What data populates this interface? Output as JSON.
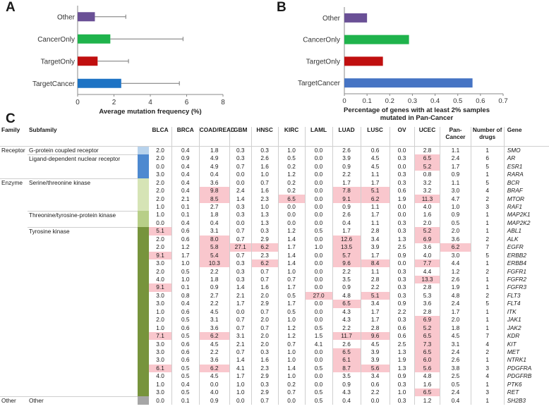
{
  "panels": {
    "a": "A",
    "b": "B",
    "c": "C"
  },
  "chart_data": [
    {
      "type": "bar",
      "orientation": "horizontal",
      "categories": [
        "Other",
        "CancerOnly",
        "TargetOnly",
        "TargetCancer"
      ],
      "values": [
        0.95,
        1.8,
        1.1,
        2.4
      ],
      "error": [
        1.7,
        4.0,
        1.7,
        3.2
      ],
      "colors": [
        "#6a5096",
        "#1fb34c",
        "#c00f0f",
        "#1d73c4"
      ],
      "xlabel": "Average mutation frequency (%)",
      "xlim": [
        0,
        8
      ],
      "xticks": [
        "0",
        "2",
        "4",
        "6",
        "8"
      ]
    },
    {
      "type": "bar",
      "orientation": "horizontal",
      "categories": [
        "Other",
        "CancerOnly",
        "TargetOnly",
        "TargetCancer"
      ],
      "values": [
        0.1,
        0.285,
        0.17,
        0.565
      ],
      "colors": [
        "#6a5096",
        "#1fb34c",
        "#c00f0f",
        "#4674c4"
      ],
      "xlabel": "Percentage of genes with at least 2% samples mutated in Pan-Cancer",
      "xlim": [
        0,
        0.7
      ],
      "xticks": [
        "0",
        "0.1",
        "0.2",
        "0.3",
        "0.4",
        "0.5",
        "0.6",
        "0.7"
      ]
    }
  ],
  "table": {
    "headers": {
      "family": "Family",
      "subfamily": "Subfamily",
      "cols": [
        "BLCA",
        "BRCA",
        "COAD/READ",
        "GBM",
        "HNSC",
        "KIRC",
        "LAML",
        "LUAD",
        "LUSC",
        "OV",
        "UCEC",
        "Pan-Cancer",
        "Number of drugs"
      ],
      "gene": "Gene"
    },
    "highlight_color": "#f9c7cd",
    "rows": [
      {
        "family": "Receptor",
        "subfamily": "G-protein coupled receptor",
        "bar": "#b7d2ec",
        "vals": [
          "2.0",
          "0.4",
          "1.8",
          "0.3",
          "0.3",
          "1.0",
          "0.0",
          "2.6",
          "0.6",
          "0.0",
          "2.8",
          "1.1",
          "1"
        ],
        "hl": [],
        "gene": "SMO"
      },
      {
        "family": "",
        "subfamily": "Ligand-dependent nuclear receptor",
        "bar": "#4d89d0",
        "vals": [
          "2.0",
          "0.9",
          "4.9",
          "0.3",
          "2.6",
          "0.5",
          "0.0",
          "3.9",
          "4.5",
          "0.3",
          "6.5",
          "2.4",
          "6"
        ],
        "hl": [
          10
        ],
        "gene": "AR"
      },
      {
        "family": "",
        "subfamily": "",
        "bar": "#4d89d0",
        "vals": [
          "0.0",
          "0.4",
          "4.9",
          "0.7",
          "1.6",
          "0.2",
          "0.0",
          "0.9",
          "4.5",
          "0.0",
          "5.2",
          "1.7",
          "5"
        ],
        "hl": [
          10
        ],
        "gene": "ESR1"
      },
      {
        "family": "",
        "subfamily": "",
        "bar": "#4d89d0",
        "vals": [
          "3.0",
          "0.4",
          "0.4",
          "0.0",
          "1.0",
          "1.2",
          "0.0",
          "2.2",
          "1.1",
          "0.3",
          "0.8",
          "0.9",
          "1"
        ],
        "hl": [],
        "gene": "RARA"
      },
      {
        "family": "Enzyme",
        "subfamily": "Serine/threonine kinase",
        "bar": "#d6e4b6",
        "vals": [
          "2.0",
          "0.4",
          "3.6",
          "0.0",
          "0.7",
          "0.2",
          "0.0",
          "1.7",
          "1.7",
          "0.3",
          "3.2",
          "1.1",
          "5"
        ],
        "hl": [],
        "gene": "BCR"
      },
      {
        "family": "",
        "subfamily": "",
        "bar": "#d6e4b6",
        "vals": [
          "2.0",
          "0.4",
          "9.8",
          "2.4",
          "1.6",
          "0.2",
          "0.0",
          "7.8",
          "5.1",
          "0.6",
          "3.2",
          "3.0",
          "4"
        ],
        "hl": [
          2,
          7,
          8
        ],
        "gene": "BRAF"
      },
      {
        "family": "",
        "subfamily": "",
        "bar": "#d6e4b6",
        "vals": [
          "2.0",
          "2.1",
          "8.5",
          "1.4",
          "2.3",
          "6.5",
          "0.0",
          "9.1",
          "6.2",
          "1.9",
          "11.3",
          "4.7",
          "2"
        ],
        "hl": [
          2,
          5,
          7,
          8,
          10
        ],
        "gene": "MTOR"
      },
      {
        "family": "",
        "subfamily": "",
        "bar": "#d6e4b6",
        "vals": [
          "1.0",
          "0.1",
          "2.7",
          "0.3",
          "1.0",
          "0.0",
          "0.0",
          "0.9",
          "1.1",
          "0.0",
          "4.0",
          "1.0",
          "3"
        ],
        "hl": [],
        "gene": "RAF1"
      },
      {
        "family": "",
        "subfamily": "Threonine/tyrosine-protein kinase",
        "bar": "#b8cf88",
        "vals": [
          "1.0",
          "0.1",
          "1.8",
          "0.3",
          "1.3",
          "0.0",
          "0.0",
          "2.6",
          "1.7",
          "0.0",
          "1.6",
          "0.9",
          "1"
        ],
        "hl": [],
        "gene": "MAP2K1"
      },
      {
        "family": "",
        "subfamily": "",
        "bar": "#b8cf88",
        "vals": [
          "0.0",
          "0.4",
          "0.4",
          "0.0",
          "1.3",
          "0.0",
          "0.0",
          "0.4",
          "1.1",
          "0.3",
          "2.0",
          "0.5",
          "1"
        ],
        "hl": [],
        "gene": "MAP2K2"
      },
      {
        "family": "",
        "subfamily": "Tyrosine kinase",
        "bar": "#77943c",
        "vals": [
          "5.1",
          "0.6",
          "3.1",
          "0.7",
          "0.3",
          "1.2",
          "0.5",
          "1.7",
          "2.8",
          "0.3",
          "5.2",
          "2.0",
          "1"
        ],
        "hl": [
          0,
          10
        ],
        "gene": "ABL1"
      },
      {
        "family": "",
        "subfamily": "",
        "bar": "#77943c",
        "vals": [
          "2.0",
          "0.6",
          "8.0",
          "0.7",
          "2.9",
          "1.4",
          "0.0",
          "12.6",
          "3.4",
          "1.3",
          "6.9",
          "3.6",
          "2"
        ],
        "hl": [
          2,
          7,
          10
        ],
        "gene": "ALK"
      },
      {
        "family": "",
        "subfamily": "",
        "bar": "#77943c",
        "vals": [
          "2.0",
          "1.2",
          "5.8",
          "27.1",
          "6.2",
          "1.7",
          "1.0",
          "13.5",
          "3.9",
          "2.5",
          "3.6",
          "6.2",
          "7"
        ],
        "hl": [
          2,
          3,
          4,
          7,
          11
        ],
        "gene": "EGFR"
      },
      {
        "family": "",
        "subfamily": "",
        "bar": "#77943c",
        "vals": [
          "9.1",
          "1.7",
          "5.4",
          "0.7",
          "2.3",
          "1.4",
          "0.0",
          "5.7",
          "1.7",
          "0.9",
          "4.0",
          "3.0",
          "5"
        ],
        "hl": [
          0,
          2,
          7
        ],
        "gene": "ERBB2"
      },
      {
        "family": "",
        "subfamily": "",
        "bar": "#77943c",
        "vals": [
          "3.0",
          "1.0",
          "10.3",
          "0.3",
          "6.2",
          "1.4",
          "0.0",
          "9.6",
          "8.4",
          "0.0",
          "7.7",
          "4.4",
          "1"
        ],
        "hl": [
          2,
          4,
          7,
          8,
          10
        ],
        "gene": "ERBB4"
      },
      {
        "family": "",
        "subfamily": "",
        "bar": "#77943c",
        "vals": [
          "2.0",
          "0.5",
          "2.2",
          "0.3",
          "0.7",
          "1.0",
          "0.0",
          "2.2",
          "1.1",
          "0.3",
          "4.4",
          "1.2",
          "2"
        ],
        "hl": [],
        "gene": "FGFR1"
      },
      {
        "family": "",
        "subfamily": "",
        "bar": "#77943c",
        "vals": [
          "4.0",
          "1.0",
          "1.8",
          "0.3",
          "0.7",
          "0.7",
          "0.0",
          "3.5",
          "2.8",
          "0.3",
          "13.3",
          "2.6",
          "1"
        ],
        "hl": [
          10
        ],
        "gene": "FGFR2"
      },
      {
        "family": "",
        "subfamily": "",
        "bar": "#77943c",
        "vals": [
          "9.1",
          "0.1",
          "0.9",
          "1.4",
          "1.6",
          "1.7",
          "0.0",
          "0.9",
          "2.2",
          "0.3",
          "2.8",
          "1.9",
          "1"
        ],
        "hl": [
          0
        ],
        "gene": "FGFR3"
      },
      {
        "family": "",
        "subfamily": "",
        "bar": "#77943c",
        "vals": [
          "3.0",
          "0.8",
          "2.7",
          "2.1",
          "2.0",
          "0.5",
          "27.0",
          "4.8",
          "5.1",
          "0.3",
          "5.3",
          "4.8",
          "2"
        ],
        "hl": [
          6,
          8
        ],
        "gene": "FLT3"
      },
      {
        "family": "",
        "subfamily": "",
        "bar": "#77943c",
        "vals": [
          "3.0",
          "0.4",
          "2.2",
          "1.7",
          "2.9",
          "1.7",
          "0.0",
          "6.5",
          "3.4",
          "0.9",
          "3.6",
          "2.4",
          "5"
        ],
        "hl": [
          7
        ],
        "gene": "FLT4"
      },
      {
        "family": "",
        "subfamily": "",
        "bar": "#77943c",
        "vals": [
          "1.0",
          "0.6",
          "4.5",
          "0.0",
          "0.7",
          "0.5",
          "0.0",
          "4.3",
          "1.7",
          "2.2",
          "2.8",
          "1.7",
          "1"
        ],
        "hl": [],
        "gene": "ITK"
      },
      {
        "family": "",
        "subfamily": "",
        "bar": "#77943c",
        "vals": [
          "2.0",
          "0.5",
          "3.1",
          "0.7",
          "2.0",
          "1.0",
          "0.0",
          "4.3",
          "1.7",
          "0.3",
          "6.9",
          "2.0",
          "1"
        ],
        "hl": [
          10
        ],
        "gene": "JAK1"
      },
      {
        "family": "",
        "subfamily": "",
        "bar": "#77943c",
        "vals": [
          "1.0",
          "0.6",
          "3.6",
          "0.7",
          "0.7",
          "1.2",
          "0.5",
          "2.2",
          "2.8",
          "0.6",
          "5.2",
          "1.8",
          "1"
        ],
        "hl": [
          10
        ],
        "gene": "JAK2"
      },
      {
        "family": "",
        "subfamily": "",
        "bar": "#77943c",
        "vals": [
          "7.1",
          "0.5",
          "6.2",
          "3.1",
          "2.0",
          "1.2",
          "1.5",
          "11.7",
          "9.6",
          "0.6",
          "6.5",
          "4.5",
          "7"
        ],
        "hl": [
          0,
          2,
          7,
          8,
          10
        ],
        "gene": "KDR"
      },
      {
        "family": "",
        "subfamily": "",
        "bar": "#77943c",
        "vals": [
          "3.0",
          "0.6",
          "4.5",
          "2.1",
          "2.0",
          "0.7",
          "4.1",
          "2.6",
          "4.5",
          "2.5",
          "7.3",
          "3.1",
          "4"
        ],
        "hl": [
          10
        ],
        "gene": "KIT"
      },
      {
        "family": "",
        "subfamily": "",
        "bar": "#77943c",
        "vals": [
          "3.0",
          "0.6",
          "2.2",
          "0.7",
          "0.3",
          "1.0",
          "0.0",
          "6.5",
          "3.9",
          "1.3",
          "6.5",
          "2.4",
          "2"
        ],
        "hl": [
          7,
          10
        ],
        "gene": "MET"
      },
      {
        "family": "",
        "subfamily": "",
        "bar": "#77943c",
        "vals": [
          "3.0",
          "0.6",
          "3.6",
          "1.4",
          "1.6",
          "1.0",
          "0.0",
          "6.1",
          "3.9",
          "1.9",
          "6.0",
          "2.6",
          "1"
        ],
        "hl": [
          7,
          10
        ],
        "gene": "NTRK1"
      },
      {
        "family": "",
        "subfamily": "",
        "bar": "#77943c",
        "vals": [
          "6.1",
          "0.5",
          "6.2",
          "4.1",
          "2.3",
          "1.4",
          "0.5",
          "8.7",
          "5.6",
          "1.3",
          "5.6",
          "3.8",
          "3"
        ],
        "hl": [
          0,
          2,
          7,
          8,
          10
        ],
        "gene": "PDGFRA"
      },
      {
        "family": "",
        "subfamily": "",
        "bar": "#77943c",
        "vals": [
          "4.0",
          "0.5",
          "4.5",
          "1.7",
          "2.9",
          "1.0",
          "0.0",
          "3.5",
          "3.4",
          "0.9",
          "4.8",
          "2.5",
          "4"
        ],
        "hl": [],
        "gene": "PDGFRB"
      },
      {
        "family": "",
        "subfamily": "",
        "bar": "#77943c",
        "vals": [
          "1.0",
          "0.4",
          "0.0",
          "1.0",
          "0.3",
          "0.2",
          "0.0",
          "0.9",
          "0.6",
          "0.3",
          "1.6",
          "0.5",
          "1"
        ],
        "hl": [],
        "gene": "PTK6"
      },
      {
        "family": "",
        "subfamily": "",
        "bar": "#77943c",
        "vals": [
          "3.0",
          "0.5",
          "4.0",
          "1.0",
          "2.9",
          "0.7",
          "0.5",
          "4.3",
          "2.2",
          "1.0",
          "6.5",
          "2.4",
          "3"
        ],
        "hl": [
          10
        ],
        "gene": "RET"
      },
      {
        "family": "Other",
        "subfamily": "Other",
        "bar": "#a6a6a6",
        "vals": [
          "0.0",
          "0.1",
          "0.9",
          "0.0",
          "0.7",
          "0.0",
          "0.5",
          "0.4",
          "0.0",
          "0.3",
          "1.2",
          "0.4",
          "1"
        ],
        "hl": [],
        "gene": "SH2B3"
      }
    ]
  }
}
